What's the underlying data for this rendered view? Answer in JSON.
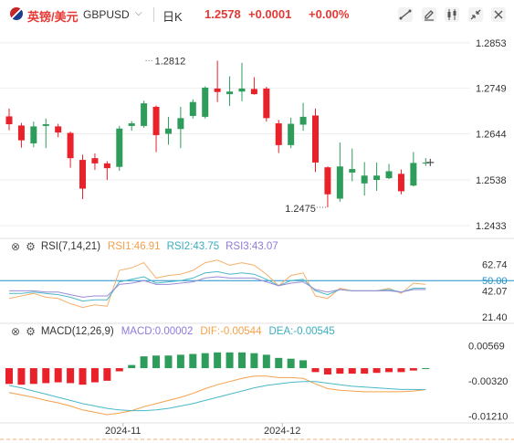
{
  "header": {
    "symbol_name": "英镑/美元",
    "symbol_code": "GBPUSD",
    "caret": "⌵",
    "period": "日K",
    "last_price": "1.2578",
    "change": "+0.0001",
    "change_pct": "+0.00%",
    "tools": [
      "draw-line-icon",
      "edit-icon",
      "indicator-icon",
      "shrink-icon",
      "close-icon"
    ]
  },
  "colors": {
    "up": "#2e9c5a",
    "down": "#e8212a",
    "rsi1": "#f5b06a",
    "rsi2": "#4ab8c8",
    "rsi3": "#9b8cd6",
    "macd": "#8f7ad6",
    "dif": "#f5a04a",
    "dea": "#4ab8c8",
    "level": "#1e90c8"
  },
  "chart_data": [
    {
      "type": "candlestick",
      "title": "GBPUSD 日K",
      "y_ticks": [
        "1.2853",
        "1.2749",
        "1.2644",
        "1.2538",
        "1.2433"
      ],
      "ylim": [
        1.241,
        1.288
      ],
      "annotations": [
        {
          "label": "1.2812",
          "price": 1.2812,
          "index": 11
        },
        {
          "label": "1.2475",
          "price": 1.2475,
          "index": 26
        }
      ],
      "candles": [
        {
          "o": 1.2684,
          "h": 1.2702,
          "l": 1.2652,
          "c": 1.2666
        },
        {
          "o": 1.2663,
          "h": 1.2669,
          "l": 1.2612,
          "c": 1.2629
        },
        {
          "o": 1.2622,
          "h": 1.2672,
          "l": 1.2613,
          "c": 1.2661
        },
        {
          "o": 1.2662,
          "h": 1.2679,
          "l": 1.2611,
          "c": 1.2666
        },
        {
          "o": 1.2661,
          "h": 1.2667,
          "l": 1.2636,
          "c": 1.2647
        },
        {
          "o": 1.2646,
          "h": 1.2649,
          "l": 1.2566,
          "c": 1.2588
        },
        {
          "o": 1.2584,
          "h": 1.2596,
          "l": 1.2494,
          "c": 1.2518
        },
        {
          "o": 1.2588,
          "h": 1.2599,
          "l": 1.2561,
          "c": 1.2576
        },
        {
          "o": 1.2576,
          "h": 1.2581,
          "l": 1.2538,
          "c": 1.2565
        },
        {
          "o": 1.2568,
          "h": 1.2662,
          "l": 1.2559,
          "c": 1.2656
        },
        {
          "o": 1.2662,
          "h": 1.2673,
          "l": 1.2651,
          "c": 1.2668
        },
        {
          "o": 1.2662,
          "h": 1.272,
          "l": 1.2658,
          "c": 1.2714
        },
        {
          "o": 1.2706,
          "h": 1.2709,
          "l": 1.2602,
          "c": 1.2641
        },
        {
          "o": 1.2644,
          "h": 1.2683,
          "l": 1.2619,
          "c": 1.2656
        },
        {
          "o": 1.2655,
          "h": 1.2706,
          "l": 1.2611,
          "c": 1.268
        },
        {
          "o": 1.2685,
          "h": 1.2723,
          "l": 1.2679,
          "c": 1.2717
        },
        {
          "o": 1.2683,
          "h": 1.2753,
          "l": 1.2679,
          "c": 1.275
        },
        {
          "o": 1.2748,
          "h": 1.2812,
          "l": 1.2717,
          "c": 1.274
        },
        {
          "o": 1.2735,
          "h": 1.2776,
          "l": 1.2708,
          "c": 1.2741
        },
        {
          "o": 1.2741,
          "h": 1.2807,
          "l": 1.2719,
          "c": 1.2748
        },
        {
          "o": 1.2747,
          "h": 1.2774,
          "l": 1.2734,
          "c": 1.2735
        },
        {
          "o": 1.2748,
          "h": 1.2752,
          "l": 1.2672,
          "c": 1.268
        },
        {
          "o": 1.2668,
          "h": 1.2676,
          "l": 1.26,
          "c": 1.2618
        },
        {
          "o": 1.2618,
          "h": 1.2681,
          "l": 1.2611,
          "c": 1.2667
        },
        {
          "o": 1.2665,
          "h": 1.2715,
          "l": 1.2651,
          "c": 1.2683
        },
        {
          "o": 1.2686,
          "h": 1.2702,
          "l": 1.2556,
          "c": 1.2578
        },
        {
          "o": 1.2567,
          "h": 1.2569,
          "l": 1.2475,
          "c": 1.2505
        },
        {
          "o": 1.2495,
          "h": 1.2624,
          "l": 1.2488,
          "c": 1.2569
        },
        {
          "o": 1.2555,
          "h": 1.261,
          "l": 1.2535,
          "c": 1.2563
        },
        {
          "o": 1.253,
          "h": 1.2579,
          "l": 1.2502,
          "c": 1.2548
        },
        {
          "o": 1.2538,
          "h": 1.2578,
          "l": 1.2513,
          "c": 1.2548
        },
        {
          "o": 1.2542,
          "h": 1.2575,
          "l": 1.254,
          "c": 1.2558
        },
        {
          "o": 1.2552,
          "h": 1.2562,
          "l": 1.2505,
          "c": 1.2512
        },
        {
          "o": 1.2525,
          "h": 1.2602,
          "l": 1.2523,
          "c": 1.2577
        },
        {
          "o": 1.2577,
          "h": 1.2588,
          "l": 1.257,
          "c": 1.2578
        }
      ]
    },
    {
      "type": "line",
      "title": "RSI(7,14,21)",
      "y_ticks": [
        "62.74",
        "50.00",
        "42.07",
        "21.40"
      ],
      "ylim": [
        18,
        68
      ],
      "reference_line": 50.0,
      "series": [
        {
          "name": "RSI1",
          "value_label": "RSI1:46.91",
          "values": [
            36,
            38,
            40,
            37,
            36,
            32,
            29,
            31,
            30,
            58,
            60,
            64,
            52,
            54,
            55,
            58,
            64,
            66,
            62,
            64,
            62,
            55,
            46,
            54,
            56,
            38,
            36,
            44,
            42,
            42,
            42,
            44,
            40,
            48,
            47
          ]
        },
        {
          "name": "RSI2",
          "value_label": "RSI2:43.75",
          "values": [
            40,
            40,
            41,
            40,
            39,
            37,
            34,
            35,
            35,
            49,
            51,
            53,
            48,
            49,
            50,
            52,
            56,
            57,
            55,
            56,
            55,
            51,
            46,
            50,
            51,
            42,
            39,
            43,
            42,
            42,
            42,
            43,
            41,
            44,
            44
          ]
        },
        {
          "name": "RSI3",
          "value_label": "RSI3:43.07",
          "values": [
            42,
            42,
            42,
            41,
            41,
            39,
            37,
            38,
            38,
            47,
            48,
            50,
            47,
            47,
            48,
            49,
            52,
            53,
            52,
            52,
            52,
            49,
            46,
            48,
            49,
            43,
            41,
            43,
            42,
            42,
            42,
            42,
            41,
            43,
            43
          ]
        }
      ]
    },
    {
      "type": "bar+line",
      "title": "MACD(12,26,9)",
      "y_ticks": [
        "0.00569",
        "-0.00320",
        "-0.01210"
      ],
      "ylim": [
        -0.0132,
        0.0072
      ],
      "series": [
        {
          "name": "MACD",
          "value_label": "MACD:0.00002",
          "values": [
            -0.004,
            -0.0042,
            -0.004,
            -0.0038,
            -0.0036,
            -0.0038,
            -0.0042,
            -0.0036,
            -0.0032,
            -0.0008,
            0.0008,
            0.003,
            0.0032,
            0.0032,
            0.0034,
            0.0036,
            0.0038,
            0.004,
            0.004,
            0.004,
            0.0038,
            0.0034,
            0.0026,
            0.0024,
            0.002,
            -0.001,
            -0.0016,
            -0.0014,
            -0.0014,
            -0.0014,
            -0.0012,
            -0.001,
            -0.001,
            -0.0006,
            2e-05
          ]
        },
        {
          "name": "DIF",
          "value_label": "DIF:-0.00544",
          "values": [
            -0.0062,
            -0.0068,
            -0.0074,
            -0.0082,
            -0.0088,
            -0.0096,
            -0.0106,
            -0.0112,
            -0.0118,
            -0.0114,
            -0.0108,
            -0.0098,
            -0.009,
            -0.0082,
            -0.0074,
            -0.0064,
            -0.0052,
            -0.0042,
            -0.0034,
            -0.0026,
            -0.002,
            -0.002,
            -0.0024,
            -0.0024,
            -0.0026,
            -0.004,
            -0.0052,
            -0.0056,
            -0.0058,
            -0.006,
            -0.006,
            -0.006,
            -0.006,
            -0.0058,
            -0.00544
          ]
        },
        {
          "name": "DEA",
          "value_label": "DEA:-0.00545",
          "values": [
            -0.0044,
            -0.005,
            -0.0058,
            -0.0066,
            -0.0074,
            -0.0082,
            -0.009,
            -0.0096,
            -0.0102,
            -0.0106,
            -0.0108,
            -0.0108,
            -0.0106,
            -0.0102,
            -0.0096,
            -0.009,
            -0.0082,
            -0.0074,
            -0.0066,
            -0.0058,
            -0.005,
            -0.0044,
            -0.004,
            -0.0036,
            -0.0034,
            -0.0034,
            -0.0038,
            -0.0042,
            -0.0046,
            -0.0048,
            -0.005,
            -0.0052,
            -0.0054,
            -0.0054,
            -0.00545
          ]
        }
      ]
    }
  ],
  "x_axis": {
    "labels": [
      {
        "text": "2024-11",
        "index": 9
      },
      {
        "text": "2024-12",
        "index": 22
      }
    ]
  }
}
